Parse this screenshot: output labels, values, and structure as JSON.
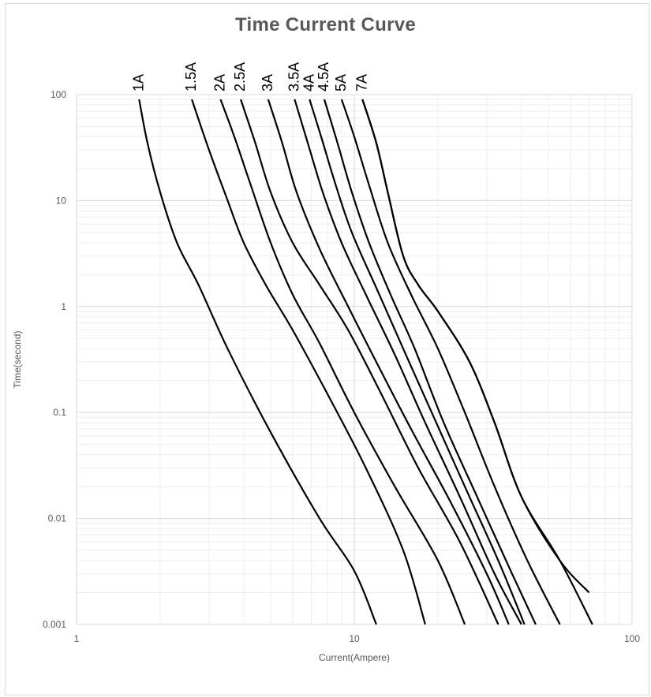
{
  "chart_data": {
    "type": "line",
    "title": "Time Current Curve",
    "xlabel": "Current(Ampere)",
    "ylabel": "Time(second)",
    "x_scale": "log",
    "y_scale": "log",
    "xlim": [
      1,
      100
    ],
    "ylim": [
      0.001,
      100
    ],
    "x_ticks": [
      "1",
      "10",
      "100"
    ],
    "y_ticks": [
      "0.001",
      "0.01",
      "0.1",
      "1",
      "10",
      "100"
    ],
    "grid": true,
    "line_color": "#000000",
    "series": [
      {
        "name": "1A",
        "points": [
          [
            1.68,
            90
          ],
          [
            1.8,
            35
          ],
          [
            2.0,
            12
          ],
          [
            2.3,
            4
          ],
          [
            2.75,
            1.6
          ],
          [
            3.5,
            0.4
          ],
          [
            5.0,
            0.065
          ],
          [
            7.5,
            0.01
          ],
          [
            10,
            0.0032
          ],
          [
            12,
            0.001
          ]
        ]
      },
      {
        "name": "1.5A",
        "points": [
          [
            2.6,
            90
          ],
          [
            3.0,
            30
          ],
          [
            3.5,
            10
          ],
          [
            4.0,
            4
          ],
          [
            4.8,
            1.6
          ],
          [
            6.0,
            0.6
          ],
          [
            8.0,
            0.15
          ],
          [
            11,
            0.03
          ],
          [
            15,
            0.005
          ],
          [
            18,
            0.001
          ]
        ]
      },
      {
        "name": "2A",
        "points": [
          [
            3.3,
            90
          ],
          [
            3.7,
            40
          ],
          [
            4.2,
            15
          ],
          [
            5.0,
            4
          ],
          [
            6.0,
            1.3
          ],
          [
            7.5,
            0.45
          ],
          [
            10,
            0.1
          ],
          [
            14,
            0.02
          ],
          [
            20,
            0.004
          ],
          [
            25,
            0.001
          ]
        ]
      },
      {
        "name": "2.5A",
        "points": [
          [
            3.9,
            90
          ],
          [
            4.4,
            35
          ],
          [
            5.0,
            12
          ],
          [
            6.0,
            4
          ],
          [
            7.5,
            1.6
          ],
          [
            9.5,
            0.6
          ],
          [
            12.5,
            0.15
          ],
          [
            17,
            0.03
          ],
          [
            24,
            0.006
          ],
          [
            33,
            0.001
          ]
        ]
      },
      {
        "name": "3A",
        "points": [
          [
            4.9,
            90
          ],
          [
            5.5,
            35
          ],
          [
            6.2,
            12
          ],
          [
            7.5,
            3.5
          ],
          [
            9.5,
            1.0
          ],
          [
            12,
            0.3
          ],
          [
            16,
            0.07
          ],
          [
            22,
            0.015
          ],
          [
            30,
            0.003
          ],
          [
            36,
            0.001
          ]
        ]
      },
      {
        "name": "3.5A",
        "points": [
          [
            6.1,
            90
          ],
          [
            6.8,
            35
          ],
          [
            7.7,
            12
          ],
          [
            9.0,
            4
          ],
          [
            11,
            1.3
          ],
          [
            14,
            0.35
          ],
          [
            18,
            0.08
          ],
          [
            24,
            0.016
          ],
          [
            32,
            0.003
          ],
          [
            40,
            0.001
          ]
        ]
      },
      {
        "name": "4A",
        "points": [
          [
            6.9,
            90
          ],
          [
            7.6,
            40
          ],
          [
            8.5,
            15
          ],
          [
            9.8,
            5
          ],
          [
            12,
            1.5
          ],
          [
            15,
            0.4
          ],
          [
            19,
            0.1
          ],
          [
            25,
            0.02
          ],
          [
            33,
            0.004
          ],
          [
            41,
            0.001
          ]
        ]
      },
      {
        "name": "4.5A",
        "points": [
          [
            7.8,
            90
          ],
          [
            8.7,
            35
          ],
          [
            9.8,
            12
          ],
          [
            11.3,
            4
          ],
          [
            13.5,
            1.3
          ],
          [
            16.5,
            0.4
          ],
          [
            21,
            0.08
          ],
          [
            28,
            0.015
          ],
          [
            37,
            0.003
          ],
          [
            45,
            0.001
          ]
        ]
      },
      {
        "name": "5A",
        "points": [
          [
            9.0,
            90
          ],
          [
            10,
            40
          ],
          [
            11.3,
            14
          ],
          [
            13.2,
            4
          ],
          [
            16,
            1.3
          ],
          [
            20,
            0.4
          ],
          [
            25,
            0.1
          ],
          [
            32,
            0.02
          ],
          [
            42,
            0.004
          ],
          [
            55,
            0.001
          ]
        ]
      },
      {
        "name": "7A",
        "points": [
          [
            10.7,
            90
          ],
          [
            12,
            35
          ],
          [
            13.2,
            12
          ],
          [
            15,
            3
          ],
          [
            17,
            1.6
          ],
          [
            20,
            0.9
          ],
          [
            26,
            0.3
          ],
          [
            32,
            0.08
          ],
          [
            40,
            0.016
          ],
          [
            55,
            0.004
          ],
          [
            70,
            0.002
          ]
        ]
      },
      {
        "name": "",
        "points": [
          [
            10.7,
            90
          ],
          [
            12,
            35
          ],
          [
            13.2,
            12
          ],
          [
            15,
            3
          ],
          [
            17,
            1.6
          ],
          [
            20,
            0.9
          ],
          [
            26,
            0.3
          ],
          [
            32,
            0.08
          ],
          [
            40,
            0.016
          ],
          [
            55,
            0.004
          ],
          [
            72,
            0.001
          ]
        ]
      }
    ]
  }
}
